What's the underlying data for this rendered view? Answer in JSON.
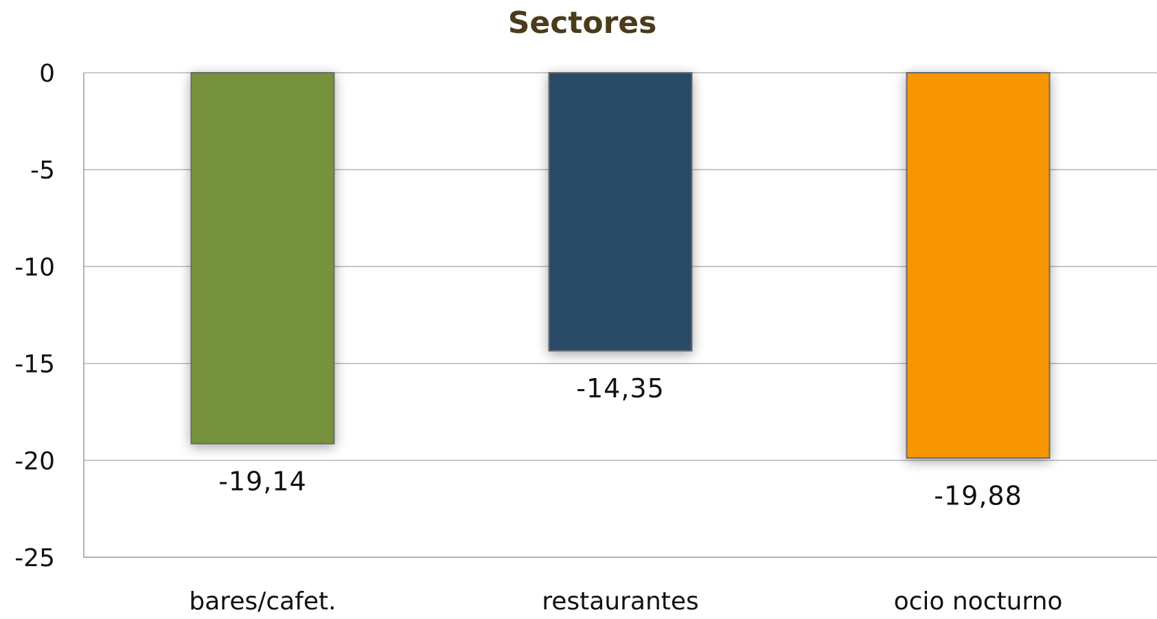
{
  "chart_data": {
    "type": "bar",
    "title": "Sectores",
    "xlabel": "",
    "ylabel": "",
    "categories": [
      "bares/cafet.",
      "restaurantes",
      "ocio nocturno"
    ],
    "values": [
      -19.14,
      -14.35,
      -19.88
    ],
    "value_labels": [
      "-19,14",
      "-14,35",
      "-19,88"
    ],
    "bar_colors": [
      "#76923c",
      "#2c4c68",
      "#f79600"
    ],
    "ylim": [
      -25,
      0
    ],
    "yticks": [
      0,
      -5,
      -10,
      -15,
      -20,
      -25
    ],
    "ytick_labels": [
      "0",
      "-5",
      "-10",
      "-15",
      "-20",
      "-25"
    ],
    "grid": true,
    "legend": "none"
  }
}
